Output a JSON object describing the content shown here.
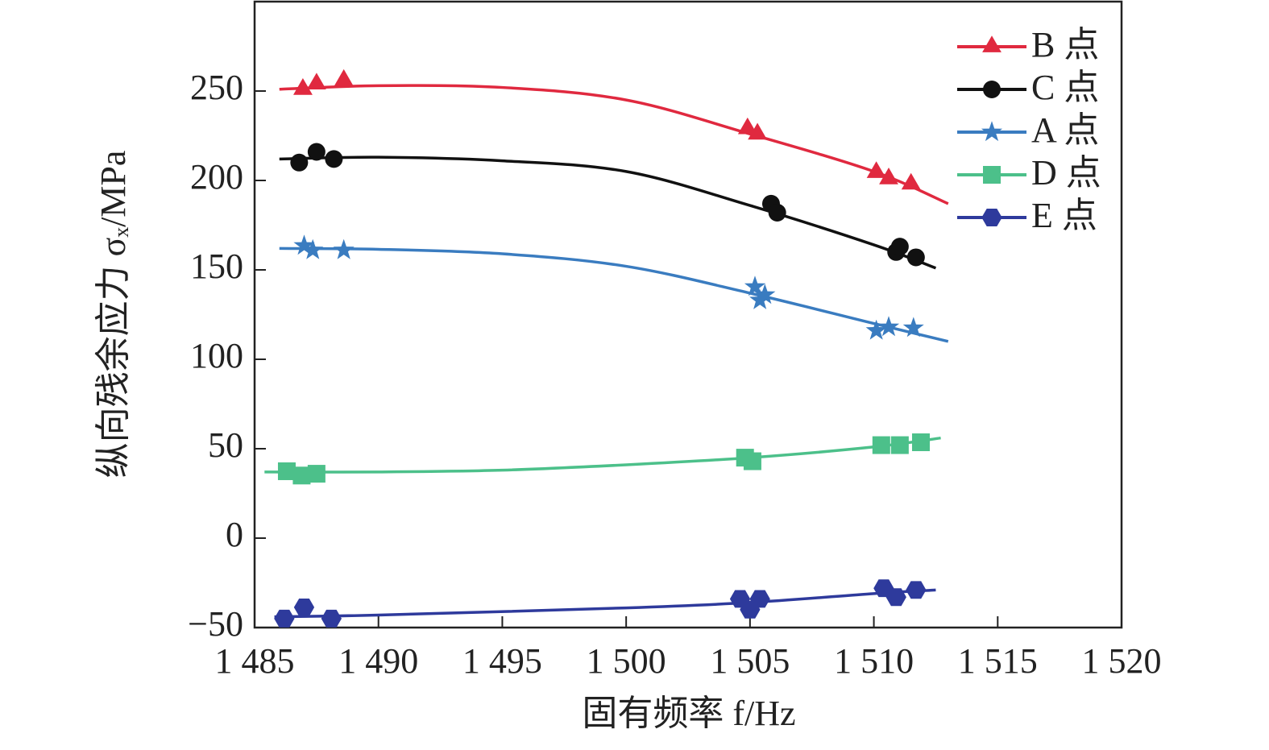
{
  "chart_data": {
    "type": "scatter",
    "x_label": "固有频率 f/Hz",
    "y_label": "纵向残余应力 σₓ/MPa",
    "xlim": [
      1485,
      1520
    ],
    "xticks": [
      {
        "value": 1485,
        "label": "1 485"
      },
      {
        "value": 1490,
        "label": "1 490"
      },
      {
        "value": 1495,
        "label": "1 495"
      },
      {
        "value": 1500,
        "label": "1 500"
      },
      {
        "value": 1505,
        "label": "1 505"
      },
      {
        "value": 1510,
        "label": "1 510"
      },
      {
        "value": 1515,
        "label": "1 515"
      },
      {
        "value": 1520,
        "label": "1 520"
      }
    ],
    "ylim": [
      -50,
      300
    ],
    "yticks": [
      {
        "value": -50,
        "label": "−50"
      },
      0,
      50,
      100,
      150,
      200,
      250
    ],
    "legend": "upper right",
    "series": [
      {
        "name": "B 点",
        "color": "#e0293f",
        "marker": "triangle",
        "x": [
          1486.95,
          1487.5,
          1488.6,
          1504.9,
          1505.3,
          1510.1,
          1510.6,
          1511.5
        ],
        "values": [
          251,
          254,
          256,
          229,
          226,
          204.5,
          201,
          198
        ],
        "fit_x": [
          1486,
          1490,
          1495,
          1500,
          1505,
          1510,
          1513
        ],
        "fit_values": [
          251,
          253,
          252,
          245,
          226,
          205,
          187
        ]
      },
      {
        "name": "C 点",
        "color": "#111111",
        "marker": "circle",
        "x": [
          1486.8,
          1487.5,
          1488.2,
          1505.85,
          1506.1,
          1510.9,
          1511.05,
          1511.7
        ],
        "values": [
          210,
          216,
          212,
          187,
          182,
          160,
          163,
          157
        ],
        "fit_x": [
          1486,
          1490,
          1495,
          1500,
          1505,
          1510,
          1512.5
        ],
        "fit_values": [
          212,
          213,
          211,
          205,
          186,
          164,
          151
        ]
      },
      {
        "name": "A 点",
        "color": "#3a7cc0",
        "marker": "star",
        "x": [
          1487,
          1487.35,
          1488.6,
          1505.2,
          1505.4,
          1505.6,
          1510.1,
          1510.6,
          1511.6
        ],
        "values": [
          163.5,
          161,
          161,
          140.5,
          133,
          136,
          116,
          118,
          117.5
        ],
        "fit_x": [
          1486,
          1490,
          1495,
          1500,
          1505,
          1510,
          1513
        ],
        "fit_values": [
          162,
          161.5,
          159,
          152,
          137,
          120,
          110
        ]
      },
      {
        "name": "D 点",
        "color": "#4cc08a",
        "marker": "square",
        "x": [
          1486.3,
          1486.9,
          1487.5,
          1504.8,
          1505.1,
          1510.3,
          1511.05,
          1511.9
        ],
        "values": [
          37.4,
          35,
          36,
          45,
          43,
          52,
          52,
          53.6
        ],
        "fit_x": [
          1485.4,
          1490,
          1495,
          1500,
          1505,
          1510,
          1512.7
        ],
        "fit_values": [
          37,
          37,
          38,
          41,
          45,
          51,
          56
        ]
      },
      {
        "name": "E 点",
        "color": "#2e3a9c",
        "marker": "hexagon",
        "x": [
          1486.2,
          1487,
          1488.1,
          1504.6,
          1505,
          1505.4,
          1510.4,
          1510.9,
          1511.7
        ],
        "values": [
          -45,
          -38.7,
          -45,
          -34,
          -40,
          -34,
          -28,
          -33,
          -29
        ],
        "fit_x": [
          1485.8,
          1490,
          1500,
          1505,
          1510,
          1512.5
        ],
        "fit_values": [
          -44,
          -43,
          -39,
          -36,
          -31,
          -29
        ]
      }
    ]
  }
}
